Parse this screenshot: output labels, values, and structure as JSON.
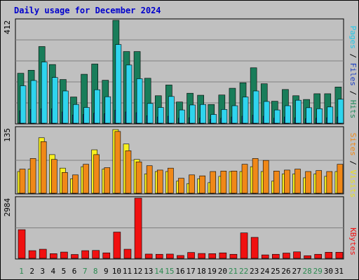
{
  "colors": {
    "background": "#c0c0c0",
    "border": "#000000",
    "gridline": "#808080",
    "title": "#0000cc",
    "hits": "#197d5a",
    "files": "#2040c0",
    "pages": "#2fd4ee",
    "visits": "#f8f020",
    "sites": "#f08818",
    "kbytes": "#f01010",
    "weekend_day": "#2a8a50",
    "weekday": "#000000",
    "side_hits": "#1f8a5a",
    "side_files": "#2040c0",
    "side_pages": "#20c8e8",
    "side_sites": "#f08818",
    "side_visits": "#e8e020",
    "side_kbytes": "#f01010"
  },
  "chart_data": {
    "title": "Daily usage for December 2024",
    "type": "bar",
    "categories": [
      "1",
      "2",
      "3",
      "4",
      "5",
      "6",
      "7",
      "8",
      "9",
      "10",
      "11",
      "12",
      "13",
      "14",
      "15",
      "16",
      "17",
      "18",
      "19",
      "20",
      "21",
      "22",
      "23",
      "24",
      "25",
      "26",
      "27",
      "28",
      "29",
      "30",
      "31"
    ],
    "weekend_days": [
      "1",
      "7",
      "8",
      "14",
      "15",
      "21",
      "22",
      "28",
      "29"
    ],
    "panels": [
      {
        "id": "top",
        "ymax_label": "412",
        "ylim": [
          0,
          412
        ],
        "legend": [
          {
            "key": "pages",
            "text": "Pages"
          },
          {
            "key": "sep",
            "text": " / "
          },
          {
            "key": "files",
            "text": "Files"
          },
          {
            "key": "sep",
            "text": " / "
          },
          {
            "key": "hits",
            "text": "Hits"
          }
        ],
        "series": [
          {
            "name": "Hits",
            "key": "hits",
            "values": [
              200,
              212,
              307,
              235,
              175,
              105,
              196,
              237,
              172,
              412,
              287,
              287,
              180,
              110,
              153,
              85,
              120,
              112,
              75,
              113,
              140,
              162,
              222,
              158,
              88,
              135,
              110,
              95,
              118,
              118,
              145
            ]
          },
          {
            "name": "Files",
            "key": "files",
            "values": [
              50,
              55,
              58,
              58,
              45,
              33,
              35,
              40,
              38,
              52,
              45,
              42,
              30,
              25,
              28,
              20,
              22,
              20,
              15,
              20,
              25,
              28,
              32,
              28,
              20,
              25,
              22,
              18,
              20,
              22,
              25
            ]
          },
          {
            "name": "Pages",
            "key": "pages",
            "values": [
              150,
              171,
              245,
              183,
              129,
              75,
              63,
              134,
              106,
              315,
              233,
              178,
              79,
              63,
              107,
              53,
              73,
              75,
              35,
              55,
              70,
              105,
              129,
              87,
              53,
              70,
              92,
              62,
              58,
              65,
              96
            ]
          }
        ]
      },
      {
        "id": "middle",
        "ymax_label": "135",
        "ylim": [
          0,
          135
        ],
        "legend": [
          {
            "key": "sites",
            "text": "Sites"
          },
          {
            "key": "sep",
            "text": " / "
          },
          {
            "key": "visits",
            "text": "Visits"
          }
        ],
        "series": [
          {
            "name": "Visits",
            "key": "visits",
            "values": [
              45,
              50,
              115,
              80,
              52,
              30,
              55,
              90,
              50,
              132,
              102,
              70,
              40,
              45,
              45,
              25,
              20,
              30,
              22,
              35,
              45,
              45,
              55,
              45,
              25,
              40,
              40,
              32,
              40,
              35,
              45
            ]
          },
          {
            "name": "Sites",
            "key": "sites",
            "values": [
              50,
              72,
              107,
              70,
              43,
              38,
              60,
              80,
              53,
              128,
              88,
              65,
              57,
              48,
              52,
              31,
              38,
              36,
              45,
              46,
              46,
              60,
              72,
              68,
              46,
              48,
              50,
              45,
              47,
              45,
              60
            ]
          }
        ]
      },
      {
        "id": "bottom",
        "ymax_label": "2984",
        "ylim": [
          0,
          2984
        ],
        "legend": [
          {
            "key": "kbytes",
            "text": "KBytes"
          }
        ],
        "series": [
          {
            "name": "KBytes",
            "key": "kbytes",
            "values": [
              1420,
              380,
              450,
              230,
              310,
              190,
              380,
              390,
              270,
              1300,
              450,
              2984,
              210,
              200,
              210,
              140,
              290,
              240,
              230,
              270,
              200,
              1260,
              1040,
              170,
              200,
              260,
              320,
              130,
              200,
              300,
              300
            ]
          }
        ]
      }
    ]
  }
}
